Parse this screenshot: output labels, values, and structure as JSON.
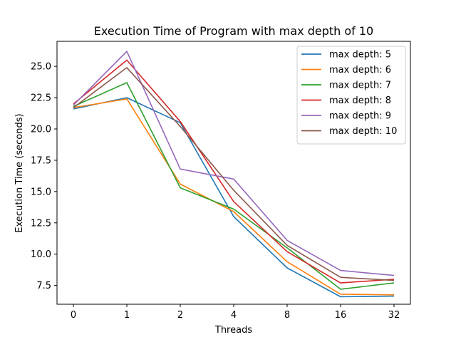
{
  "chart_data": {
    "type": "line",
    "title": "Execution Time of Program with max depth of 10",
    "xlabel": "Threads",
    "ylabel": "Execution Time (seconds)",
    "categories": [
      "0",
      "1",
      "2",
      "4",
      "8",
      "16",
      "32"
    ],
    "ylim": [
      6.0,
      27.0
    ],
    "yticks": [
      "7.5",
      "10.0",
      "12.5",
      "15.0",
      "17.5",
      "20.0",
      "22.5",
      "25.0"
    ],
    "grid": false,
    "legend_position": "top-right",
    "series": [
      {
        "name": "max depth: 5",
        "color": "#1f77b4",
        "values": [
          21.6,
          22.5,
          20.5,
          13.0,
          8.9,
          6.6,
          6.65
        ]
      },
      {
        "name": "max depth: 6",
        "color": "#ff7f0e",
        "values": [
          21.7,
          22.4,
          15.6,
          13.4,
          9.4,
          6.8,
          6.75
        ]
      },
      {
        "name": "max depth: 7",
        "color": "#2ca02c",
        "values": [
          21.8,
          23.7,
          15.3,
          13.6,
          10.5,
          7.2,
          7.7
        ]
      },
      {
        "name": "max depth: 8",
        "color": "#d62728",
        "values": [
          22.0,
          25.5,
          20.6,
          14.2,
          10.2,
          7.7,
          8.0
        ]
      },
      {
        "name": "max depth: 9",
        "color": "#9467bd",
        "values": [
          21.9,
          26.2,
          16.8,
          16.0,
          11.1,
          8.7,
          8.3
        ]
      },
      {
        "name": "max depth: 10",
        "color": "#8c564b",
        "values": [
          21.7,
          24.9,
          20.2,
          15.1,
          10.7,
          8.15,
          7.9
        ]
      }
    ]
  }
}
